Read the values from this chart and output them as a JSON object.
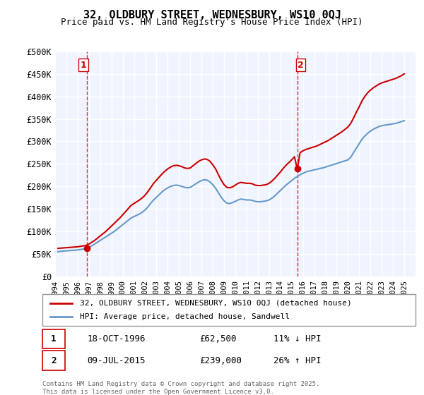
{
  "title": "32, OLDBURY STREET, WEDNESBURY, WS10 0QJ",
  "subtitle": "Price paid vs. HM Land Registry's House Price Index (HPI)",
  "xlabel": "",
  "ylabel": "",
  "ylim": [
    0,
    500000
  ],
  "yticks": [
    0,
    50000,
    100000,
    150000,
    200000,
    250000,
    300000,
    350000,
    400000,
    450000,
    500000
  ],
  "ytick_labels": [
    "£0",
    "£50K",
    "£100K",
    "£150K",
    "£200K",
    "£250K",
    "£300K",
    "£350K",
    "£400K",
    "£450K",
    "£500K"
  ],
  "xlim_start": 1994,
  "xlim_end": 2026,
  "purchase1_x": 1996.8,
  "purchase1_y": 62500,
  "purchase2_x": 2015.5,
  "purchase2_y": 239000,
  "vline1_x": 1996.8,
  "vline2_x": 2015.5,
  "red_color": "#cc0000",
  "blue_color": "#6699cc",
  "background_color": "#f0f4ff",
  "grid_color": "#ffffff",
  "legend1_label": "32, OLDBURY STREET, WEDNESBURY, WS10 0QJ (detached house)",
  "legend2_label": "HPI: Average price, detached house, Sandwell",
  "note1_label": "1",
  "note1_date": "18-OCT-1996",
  "note1_price": "£62,500",
  "note1_hpi": "11% ↓ HPI",
  "note2_label": "2",
  "note2_date": "09-JUL-2015",
  "note2_price": "£239,000",
  "note2_hpi": "26% ↑ HPI",
  "footer": "Contains HM Land Registry data © Crown copyright and database right 2025.\nThis data is licensed under the Open Government Licence v3.0.",
  "hpi_data_x": [
    1994.25,
    1994.5,
    1994.75,
    1995.0,
    1995.25,
    1995.5,
    1995.75,
    1996.0,
    1996.25,
    1996.5,
    1996.75,
    1997.0,
    1997.25,
    1997.5,
    1997.75,
    1998.0,
    1998.25,
    1998.5,
    1998.75,
    1999.0,
    1999.25,
    1999.5,
    1999.75,
    2000.0,
    2000.25,
    2000.5,
    2000.75,
    2001.0,
    2001.25,
    2001.5,
    2001.75,
    2002.0,
    2002.25,
    2002.5,
    2002.75,
    2003.0,
    2003.25,
    2003.5,
    2003.75,
    2004.0,
    2004.25,
    2004.5,
    2004.75,
    2005.0,
    2005.25,
    2005.5,
    2005.75,
    2006.0,
    2006.25,
    2006.5,
    2006.75,
    2007.0,
    2007.25,
    2007.5,
    2007.75,
    2008.0,
    2008.25,
    2008.5,
    2008.75,
    2009.0,
    2009.25,
    2009.5,
    2009.75,
    2010.0,
    2010.25,
    2010.5,
    2010.75,
    2011.0,
    2011.25,
    2011.5,
    2011.75,
    2012.0,
    2012.25,
    2012.5,
    2012.75,
    2013.0,
    2013.25,
    2013.5,
    2013.75,
    2014.0,
    2014.25,
    2014.5,
    2014.75,
    2015.0,
    2015.25,
    2015.5,
    2015.75,
    2016.0,
    2016.25,
    2016.5,
    2016.75,
    2017.0,
    2017.25,
    2017.5,
    2017.75,
    2018.0,
    2018.25,
    2018.5,
    2018.75,
    2019.0,
    2019.25,
    2019.5,
    2019.75,
    2020.0,
    2020.25,
    2020.5,
    2020.75,
    2021.0,
    2021.25,
    2021.5,
    2021.75,
    2022.0,
    2022.25,
    2022.5,
    2022.75,
    2023.0,
    2023.25,
    2023.5,
    2023.75,
    2024.0,
    2024.25,
    2024.5,
    2024.75,
    2025.0
  ],
  "hpi_data_y": [
    55000,
    56000,
    56500,
    57000,
    57500,
    58000,
    58500,
    59000,
    60000,
    61000,
    62000,
    65000,
    68000,
    72000,
    76000,
    80000,
    84000,
    88000,
    92000,
    96000,
    100000,
    105000,
    110000,
    115000,
    120000,
    125000,
    130000,
    133000,
    136000,
    139000,
    143000,
    148000,
    155000,
    163000,
    170000,
    176000,
    182000,
    188000,
    193000,
    197000,
    200000,
    202000,
    203000,
    202000,
    200000,
    198000,
    197000,
    198000,
    202000,
    206000,
    210000,
    213000,
    215000,
    214000,
    210000,
    204000,
    196000,
    186000,
    176000,
    168000,
    163000,
    162000,
    164000,
    167000,
    170000,
    172000,
    171000,
    170000,
    170000,
    169000,
    167000,
    166000,
    166000,
    167000,
    168000,
    170000,
    174000,
    179000,
    185000,
    191000,
    197000,
    203000,
    208000,
    213000,
    218000,
    222000,
    226000,
    229000,
    232000,
    234000,
    235000,
    237000,
    238000,
    240000,
    241000,
    243000,
    245000,
    247000,
    249000,
    251000,
    253000,
    255000,
    257000,
    259000,
    265000,
    275000,
    285000,
    295000,
    305000,
    312000,
    318000,
    323000,
    327000,
    330000,
    333000,
    335000,
    336000,
    337000,
    338000,
    339000,
    340000,
    342000,
    344000,
    346000
  ],
  "red_data_x": [
    1994.25,
    1994.5,
    1994.75,
    1995.0,
    1995.25,
    1995.5,
    1995.75,
    1996.0,
    1996.25,
    1996.5,
    1996.75,
    1997.0,
    1997.25,
    1997.5,
    1997.75,
    1998.0,
    1998.25,
    1998.5,
    1998.75,
    1999.0,
    1999.25,
    1999.5,
    1999.75,
    2000.0,
    2000.25,
    2000.5,
    2000.75,
    2001.0,
    2001.25,
    2001.5,
    2001.75,
    2002.0,
    2002.25,
    2002.5,
    2002.75,
    2003.0,
    2003.25,
    2003.5,
    2003.75,
    2004.0,
    2004.25,
    2004.5,
    2004.75,
    2005.0,
    2005.25,
    2005.5,
    2005.75,
    2006.0,
    2006.25,
    2006.5,
    2006.75,
    2007.0,
    2007.25,
    2007.5,
    2007.75,
    2008.0,
    2008.25,
    2008.5,
    2008.75,
    2009.0,
    2009.25,
    2009.5,
    2009.75,
    2010.0,
    2010.25,
    2010.5,
    2010.75,
    2011.0,
    2011.25,
    2011.5,
    2011.75,
    2012.0,
    2012.25,
    2012.5,
    2012.75,
    2013.0,
    2013.25,
    2013.5,
    2013.75,
    2014.0,
    2014.25,
    2014.5,
    2014.75,
    2015.0,
    2015.25,
    2015.5,
    2015.75,
    2016.0,
    2016.25,
    2016.5,
    2016.75,
    2017.0,
    2017.25,
    2017.5,
    2017.75,
    2018.0,
    2018.25,
    2018.5,
    2018.75,
    2019.0,
    2019.25,
    2019.5,
    2019.75,
    2020.0,
    2020.25,
    2020.5,
    2020.75,
    2021.0,
    2021.25,
    2021.5,
    2021.75,
    2022.0,
    2022.25,
    2022.5,
    2022.75,
    2023.0,
    2023.25,
    2023.5,
    2023.75,
    2024.0,
    2024.25,
    2024.5,
    2024.75,
    2025.0
  ],
  "red_data_y": [
    62500,
    63000,
    63500,
    64000,
    64500,
    65000,
    65500,
    66000,
    67000,
    68000,
    69000,
    72000,
    76000,
    80000,
    85000,
    90000,
    95000,
    100000,
    106000,
    112000,
    118000,
    124000,
    130000,
    137000,
    144000,
    151000,
    158000,
    162000,
    166000,
    170000,
    175000,
    181000,
    189000,
    198000,
    207000,
    214000,
    221000,
    228000,
    234000,
    239000,
    243000,
    246000,
    247000,
    246000,
    244000,
    241000,
    240000,
    241000,
    246000,
    251000,
    256000,
    259000,
    261000,
    260000,
    256000,
    248000,
    239000,
    226000,
    214000,
    204000,
    198000,
    197000,
    199000,
    203000,
    207000,
    209000,
    208000,
    207000,
    207000,
    206000,
    203000,
    202000,
    202000,
    203000,
    204000,
    207000,
    212000,
    218000,
    225000,
    232000,
    240000,
    247000,
    253000,
    259000,
    266000,
    239000,
    275000,
    279000,
    282000,
    284000,
    286000,
    288000,
    290000,
    293000,
    296000,
    299000,
    302000,
    306000,
    310000,
    314000,
    318000,
    322000,
    327000,
    332000,
    340000,
    352000,
    365000,
    377000,
    390000,
    400000,
    408000,
    414000,
    419000,
    423000,
    427000,
    430000,
    432000,
    434000,
    436000,
    438000,
    440000,
    443000,
    446000,
    450000
  ]
}
